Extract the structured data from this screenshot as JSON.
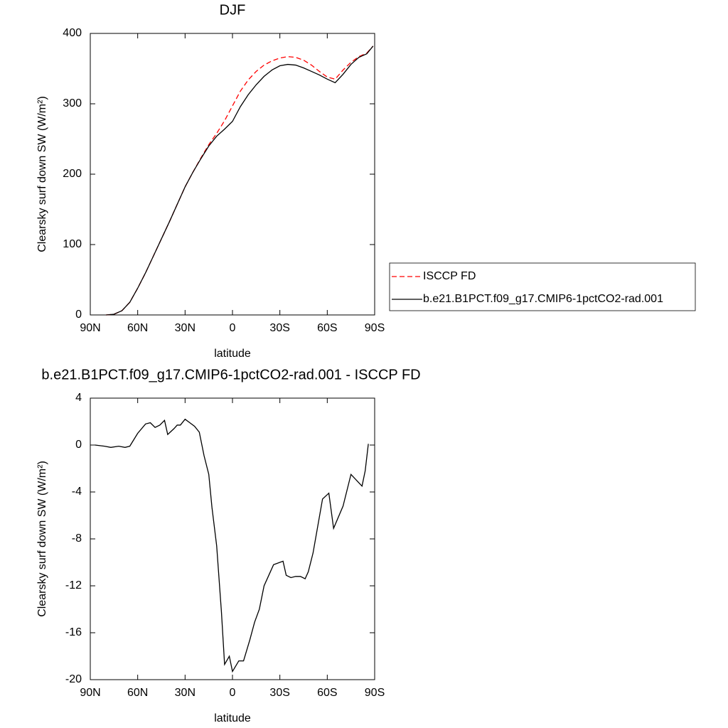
{
  "chart_data": [
    {
      "type": "line",
      "title": "DJF",
      "xlabel": "latitude",
      "ylabel": "Clearsky surf down SW (W/m²)",
      "x": [
        80,
        75,
        70,
        65,
        60,
        55,
        50,
        45,
        40,
        35,
        30,
        25,
        20,
        15,
        10,
        5,
        0,
        -5,
        -10,
        -15,
        -20,
        -25,
        -30,
        -35,
        -40,
        -45,
        -50,
        -55,
        -60,
        -65,
        -70,
        -75,
        -80,
        -85,
        -89
      ],
      "series": [
        {
          "name": "ISCCP FD",
          "color": "#ff0000",
          "linestyle": "dashed",
          "values": [
            0,
            1,
            6,
            18,
            38,
            60,
            84,
            108,
            132,
            157,
            182,
            203,
            223,
            242,
            258,
            276,
            297,
            318,
            334,
            346,
            355,
            361,
            365,
            367,
            366,
            362,
            355,
            346,
            338,
            335,
            348,
            359,
            367,
            372,
            382
          ]
        },
        {
          "name": "b.e21.B1PCT.f09_g17.CMIP6-1pctCO2-rad.001",
          "color": "#000000",
          "linestyle": "solid",
          "values": [
            0,
            1,
            6,
            18,
            38,
            60,
            84,
            108,
            132,
            157,
            182,
            203,
            222,
            240,
            254,
            264,
            275,
            296,
            313,
            327,
            339,
            348,
            354,
            356,
            355,
            351,
            346,
            341,
            335,
            330,
            342,
            356,
            366,
            371,
            382
          ]
        }
      ],
      "xlim": [
        90,
        -90
      ],
      "xticks": [
        {
          "value": 90,
          "label": "90N"
        },
        {
          "value": 60,
          "label": "60N"
        },
        {
          "value": 30,
          "label": "30N"
        },
        0,
        {
          "value": -30,
          "label": "30S"
        },
        {
          "value": -60,
          "label": "60S"
        },
        {
          "value": -90,
          "label": "90S"
        }
      ],
      "ylim": [
        0,
        400
      ],
      "yticks": [
        0,
        100,
        200,
        300,
        400
      ],
      "legend": "right"
    },
    {
      "type": "line",
      "title": "b.e21.B1PCT.f09_g17.CMIP6-1pctCO2-rad.001 - ISCCP FD",
      "xlabel": "latitude",
      "ylabel": "Clearsky surf down SW (W/m²)",
      "x": [
        87,
        81,
        77,
        72,
        68,
        65,
        60,
        55,
        52,
        49,
        46,
        43,
        41,
        37,
        35,
        33,
        30,
        27,
        24,
        21,
        18,
        15,
        13,
        10,
        7,
        5,
        2,
        0,
        -4,
        -7,
        -11,
        -14,
        -17,
        -20,
        -26,
        -32,
        -34,
        -37,
        -40,
        -43,
        -46,
        -48,
        -51,
        -57,
        -61,
        -64,
        -70,
        -75,
        -82,
        -84,
        -86
      ],
      "series": [
        {
          "color": "#000000",
          "linestyle": "solid",
          "values": [
            0,
            -0.1,
            -0.2,
            -0.1,
            -0.2,
            -0.1,
            1.0,
            1.8,
            1.9,
            1.5,
            1.7,
            2.1,
            0.9,
            1.4,
            1.7,
            1.7,
            2.2,
            1.9,
            1.6,
            1.1,
            -0.9,
            -2.5,
            -5.3,
            -8.6,
            -14.2,
            -18.7,
            -18.0,
            -19.3,
            -18.4,
            -18.4,
            -16.6,
            -15.1,
            -14.0,
            -12.0,
            -10.2,
            -9.9,
            -11.1,
            -11.3,
            -11.2,
            -11.2,
            -11.4,
            -10.8,
            -9.2,
            -4.6,
            -4.1,
            -7.1,
            -5.2,
            -2.5,
            -3.5,
            -2.2,
            0.1
          ]
        }
      ],
      "xlim": [
        90,
        -90
      ],
      "xticks": [
        {
          "value": 90,
          "label": "90N"
        },
        {
          "value": 60,
          "label": "60N"
        },
        {
          "value": 30,
          "label": "30N"
        },
        0,
        {
          "value": -30,
          "label": "30S"
        },
        {
          "value": -60,
          "label": "60S"
        },
        {
          "value": -90,
          "label": "90S"
        }
      ],
      "ylim": [
        -20,
        4
      ],
      "yticks": [
        4,
        0,
        -4,
        -8,
        -12,
        -16,
        -20
      ]
    }
  ]
}
